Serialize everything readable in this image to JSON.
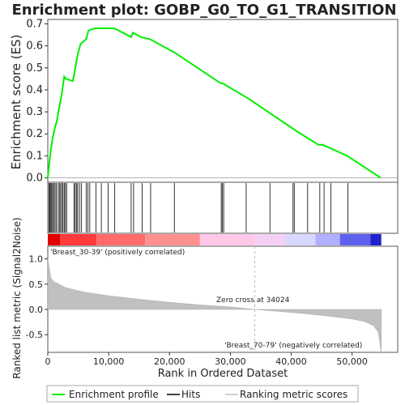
{
  "chart_data": {
    "type": "line",
    "title": "Enrichment plot: GOBP_G0_TO_G1_TRANSITION",
    "es_panel": {
      "ylabel": "Enrichment score (ES)",
      "ylim": [
        -0.02,
        0.72
      ],
      "yticks": [
        "0.0",
        "0.1",
        "0.2",
        "0.3",
        "0.4",
        "0.5",
        "0.6",
        "0.7"
      ],
      "series": [
        {
          "name": "Enrichment profile",
          "color": "#00ee00",
          "x": [
            0,
            300,
            500,
            800,
            1100,
            1500,
            1800,
            2100,
            2400,
            2700,
            3000,
            4100,
            4400,
            4700,
            5000,
            5400,
            6300,
            6700,
            7800,
            8800,
            9800,
            10900,
            13700,
            14000,
            15300,
            16800,
            20800,
            28400,
            28700,
            33000,
            41000,
            44500,
            45200,
            49200,
            54700
          ],
          "y": [
            0.0,
            0.08,
            0.13,
            0.18,
            0.22,
            0.26,
            0.31,
            0.35,
            0.4,
            0.46,
            0.45,
            0.44,
            0.48,
            0.53,
            0.57,
            0.61,
            0.63,
            0.67,
            0.68,
            0.68,
            0.68,
            0.68,
            0.64,
            0.66,
            0.64,
            0.63,
            0.57,
            0.43,
            0.43,
            0.36,
            0.21,
            0.15,
            0.15,
            0.1,
            0.0
          ]
        }
      ]
    },
    "hits": [
      200,
      350,
      500,
      650,
      800,
      1000,
      1200,
      1400,
      1700,
      1900,
      2100,
      2300,
      2500,
      2700,
      2900,
      3100,
      4300,
      4500,
      4700,
      4900,
      5200,
      5500,
      6300,
      6600,
      6900,
      7900,
      8800,
      9900,
      11000,
      13700,
      14100,
      15500,
      16900,
      20800,
      28500,
      28700,
      28900,
      32600,
      36500,
      40300,
      40500,
      42700,
      44700,
      45400,
      46500,
      49300
    ],
    "metric_panel": {
      "ylabel": "Ranked list metric (Signal2Noise)",
      "ylim": [
        -0.85,
        1.25
      ],
      "yticks": [
        "-0.5",
        "0.0",
        "0.5",
        "1.0"
      ],
      "x": [
        0,
        500,
        1000,
        3000,
        6000,
        10000,
        15000,
        20000,
        25000,
        30000,
        34024,
        38000,
        42000,
        46000,
        50000,
        52000,
        53500,
        54300,
        54800
      ],
      "values": [
        1.0,
        0.62,
        0.55,
        0.43,
        0.34,
        0.27,
        0.2,
        0.14,
        0.09,
        0.05,
        0.0,
        -0.04,
        -0.08,
        -0.13,
        -0.19,
        -0.24,
        -0.32,
        -0.45,
        -0.85
      ],
      "zero_cross_label": "Zero cross at 34024",
      "pos_label": "'Breast_30-39' (positively correlated)",
      "neg_label": "'Breast_70-79' (negatively correlated)"
    },
    "xlabel": "Rank in Ordered Dataset",
    "xlim": [
      0,
      57500
    ],
    "xticks": [
      "0",
      "10,000",
      "20,000",
      "30,000",
      "40,000",
      "50,000"
    ],
    "legend": {
      "placement": "bottom",
      "items": [
        {
          "label": "Enrichment profile",
          "color": "#00ee00"
        },
        {
          "label": "Hits",
          "color": "#000000"
        },
        {
          "label": "Ranking metric scores",
          "color": "#c0c0c0"
        }
      ]
    }
  }
}
